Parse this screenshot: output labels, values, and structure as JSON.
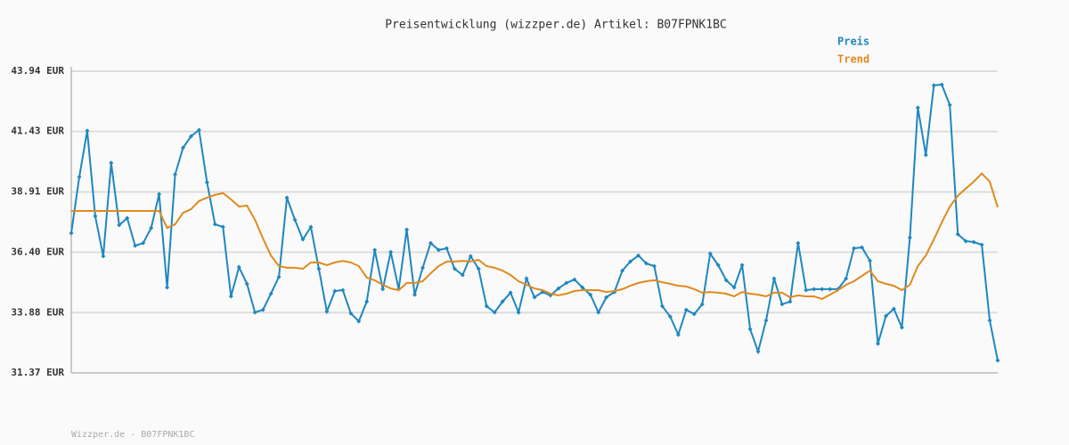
{
  "chart_data": {
    "type": "line",
    "title": "Preisentwicklung (wizzper.de) Artikel: B07FPNK1BC",
    "ylim": [
      31.37,
      43.94
    ],
    "yticks": [
      {
        "value": 31.37,
        "label": "31.37 EUR"
      },
      {
        "value": 33.88,
        "label": "33.88 EUR"
      },
      {
        "value": 36.4,
        "label": "36.40 EUR"
      },
      {
        "value": 38.91,
        "label": "38.91 EUR"
      },
      {
        "value": 41.43,
        "label": "41.43 EUR"
      },
      {
        "value": 43.94,
        "label": "43.94 EUR"
      }
    ],
    "grid": true,
    "legend": "top-right",
    "series": [
      {
        "name": "Preis",
        "color": "#1f87c0",
        "markers": true,
        "values": [
          37.19,
          39.53,
          41.46,
          37.9,
          36.23,
          40.12,
          37.53,
          37.82,
          36.67,
          36.78,
          37.41,
          38.82,
          34.93,
          39.64,
          40.75,
          41.23,
          41.49,
          39.31,
          37.56,
          37.45,
          34.56,
          35.78,
          35.08,
          33.89,
          34.0,
          34.67,
          35.37,
          38.67,
          37.75,
          36.93,
          37.45,
          35.71,
          33.93,
          34.78,
          34.82,
          33.85,
          33.52,
          34.34,
          36.49,
          34.86,
          36.41,
          34.86,
          37.34,
          34.63,
          35.75,
          36.78,
          36.49,
          36.56,
          35.71,
          35.45,
          36.23,
          35.71,
          34.15,
          33.89,
          34.34,
          34.71,
          33.89,
          35.3,
          34.52,
          34.74,
          34.6,
          34.89,
          35.12,
          35.26,
          34.93,
          34.63,
          33.89,
          34.52,
          34.74,
          35.63,
          36.01,
          36.26,
          35.93,
          35.82,
          34.15,
          33.71,
          32.96,
          34.0,
          33.82,
          34.23,
          36.34,
          35.86,
          35.23,
          34.93,
          35.86,
          33.19,
          32.26,
          33.56,
          35.3,
          34.23,
          34.34,
          36.78,
          34.82,
          34.86,
          34.86,
          34.86,
          34.86,
          35.3,
          36.56,
          36.6,
          36.04,
          32.59,
          33.74,
          34.04,
          33.26,
          37.01,
          42.42,
          40.45,
          43.35,
          43.38,
          42.53,
          37.15,
          36.86,
          36.82,
          36.71,
          33.56,
          31.89
        ]
      },
      {
        "name": "Trend",
        "color": "#e08a1e",
        "markers": false,
        "values": [
          38.12,
          38.12,
          38.12,
          38.12,
          38.12,
          38.12,
          38.12,
          38.12,
          38.12,
          38.12,
          38.12,
          38.12,
          37.41,
          37.56,
          38.04,
          38.19,
          38.53,
          38.67,
          38.79,
          38.86,
          38.6,
          38.3,
          38.34,
          37.75,
          36.97,
          36.26,
          35.82,
          35.75,
          35.75,
          35.71,
          35.97,
          35.97,
          35.86,
          35.97,
          36.04,
          35.97,
          35.82,
          35.34,
          35.23,
          35.04,
          34.89,
          34.82,
          35.12,
          35.12,
          35.19,
          35.52,
          35.82,
          36.01,
          36.01,
          36.04,
          36.01,
          36.08,
          35.82,
          35.75,
          35.63,
          35.45,
          35.19,
          35.04,
          34.89,
          34.82,
          34.67,
          34.6,
          34.67,
          34.78,
          34.82,
          34.82,
          34.82,
          34.74,
          34.78,
          34.86,
          35.0,
          35.12,
          35.19,
          35.23,
          35.15,
          35.08,
          35.0,
          34.97,
          34.86,
          34.71,
          34.74,
          34.71,
          34.67,
          34.56,
          34.74,
          34.67,
          34.63,
          34.56,
          34.71,
          34.71,
          34.52,
          34.6,
          34.56,
          34.56,
          34.45,
          34.63,
          34.82,
          35.04,
          35.19,
          35.41,
          35.63,
          35.19,
          35.08,
          35.0,
          34.82,
          35.04,
          35.82,
          36.26,
          36.93,
          37.64,
          38.3,
          38.75,
          39.05,
          39.34,
          39.68,
          39.34,
          38.27
        ]
      }
    ]
  },
  "footer": "Wizzper.de - B07FPNK1BC"
}
